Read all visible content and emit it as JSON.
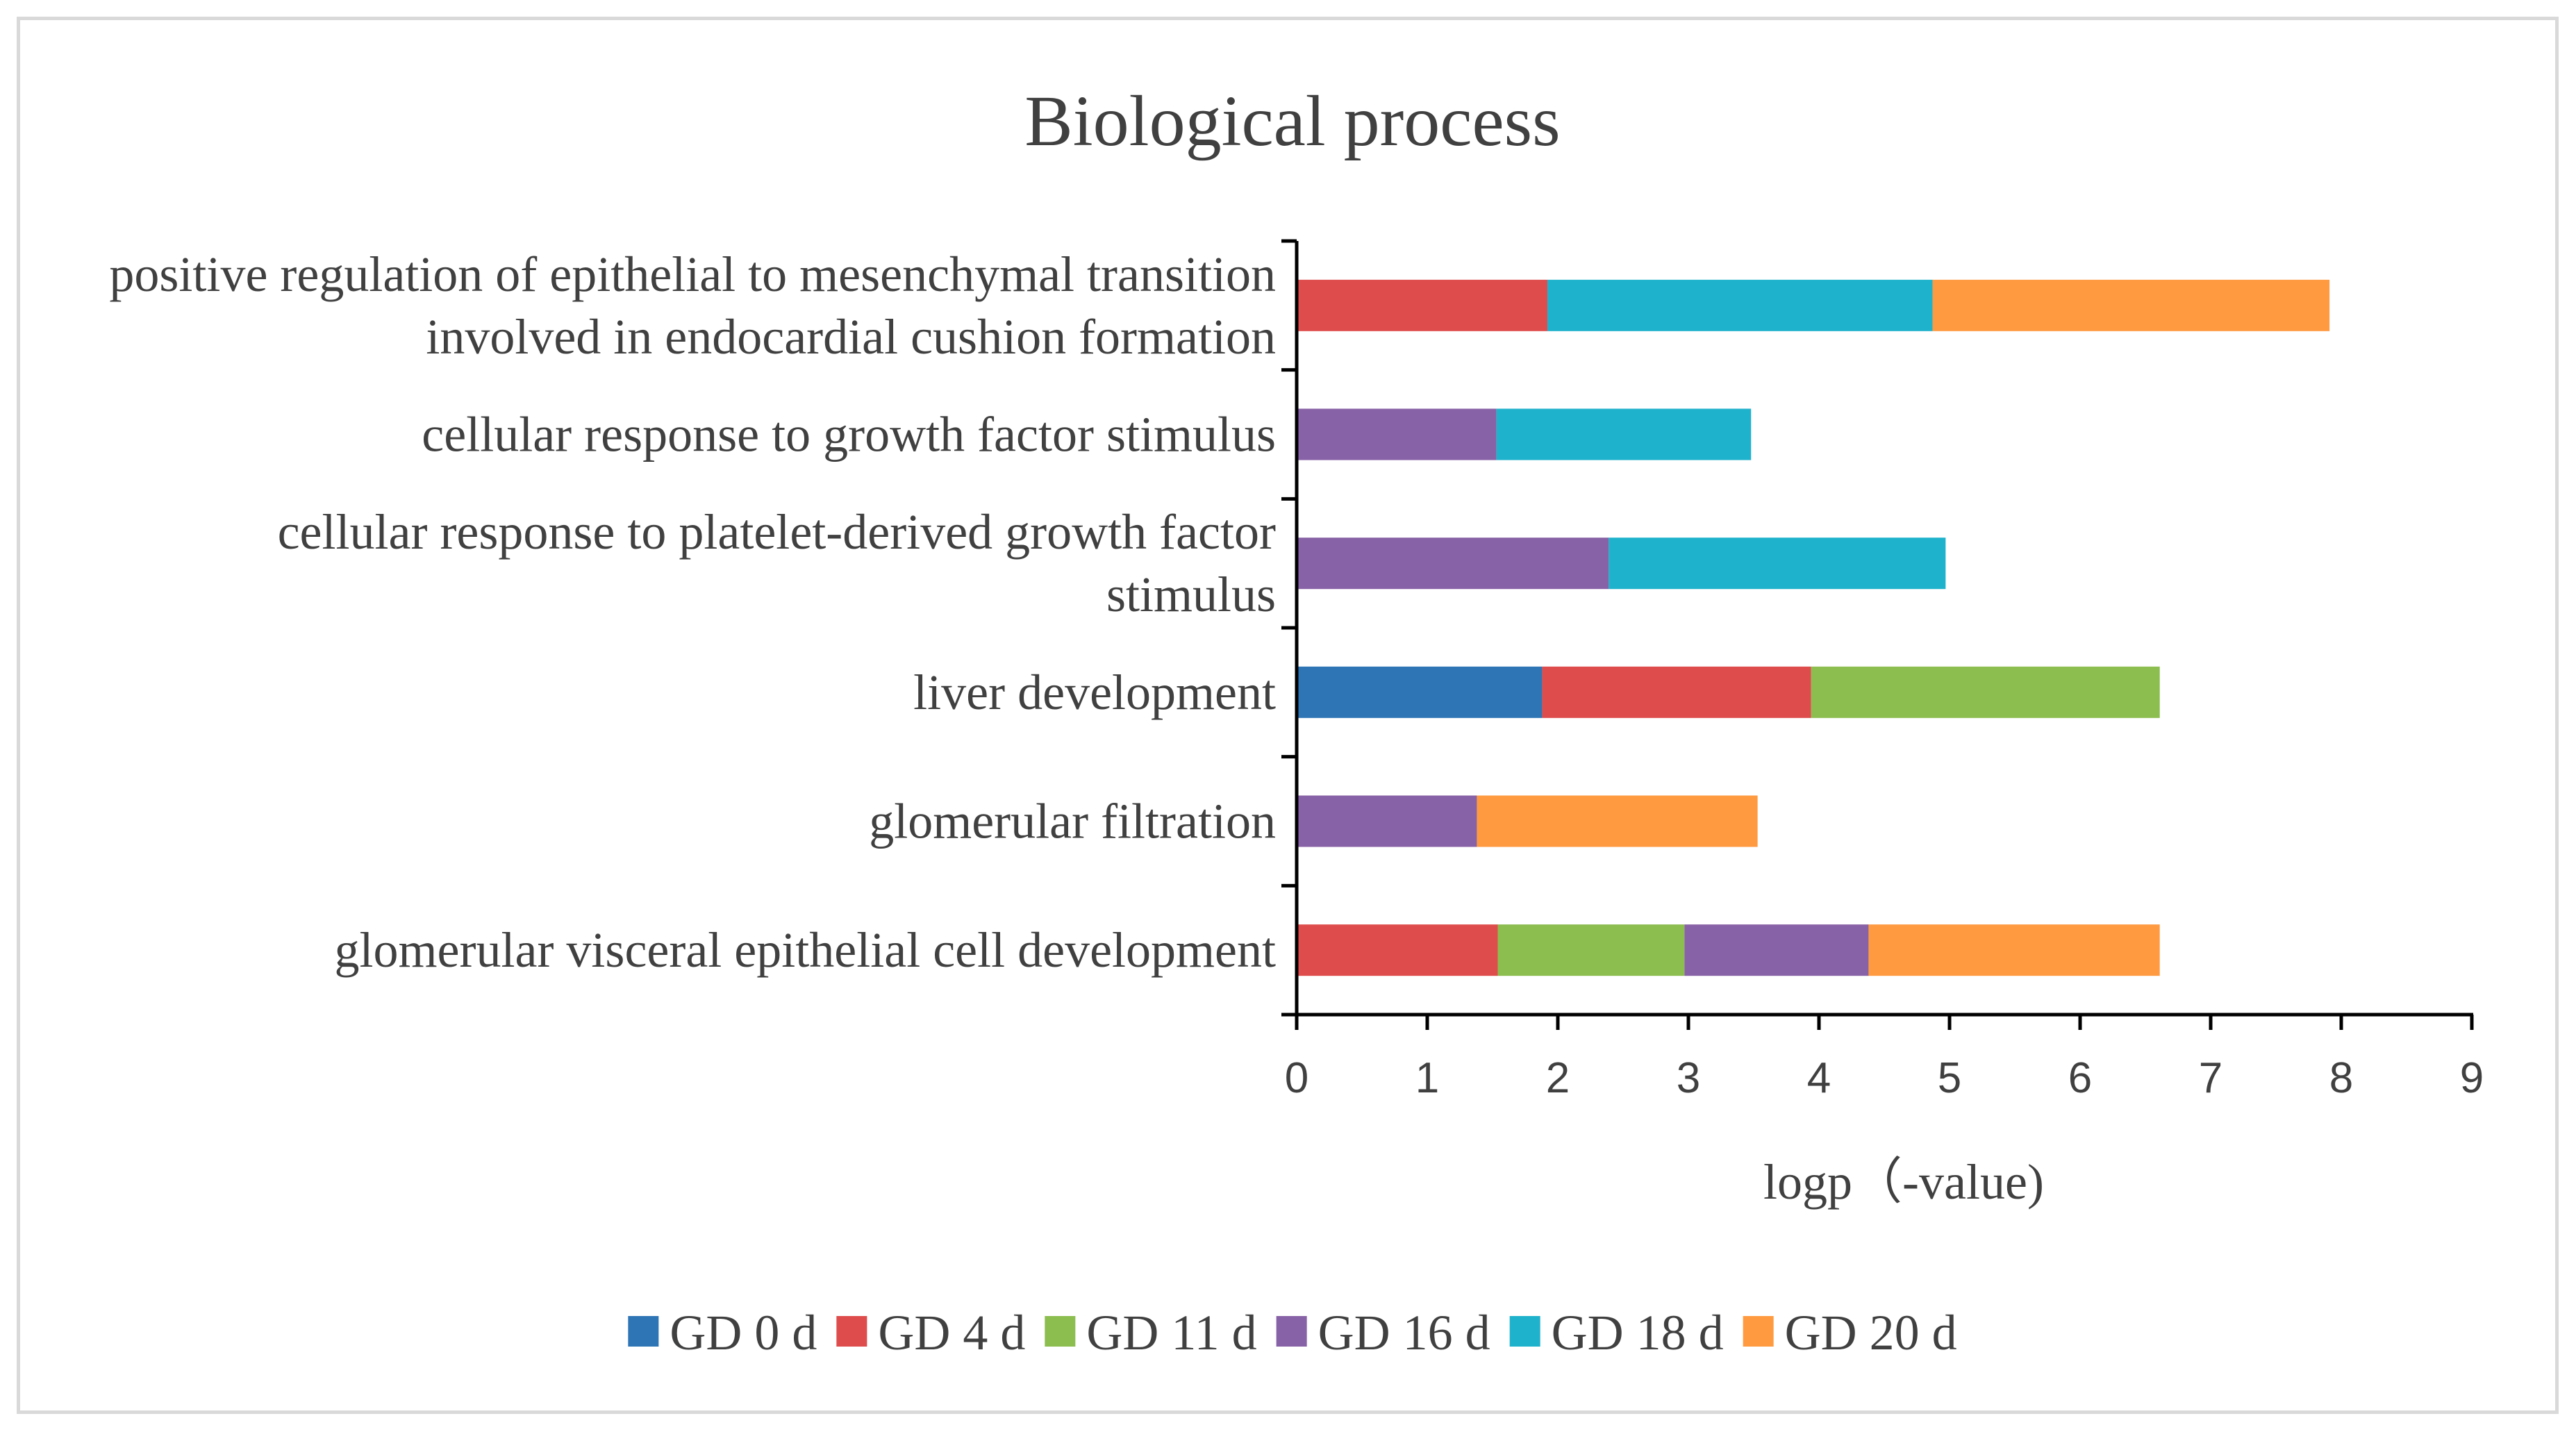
{
  "chart_data": {
    "type": "bar",
    "orientation": "horizontal",
    "stacked": true,
    "title": "Biological process",
    "xlabel": "logp（-value)",
    "ylabel": "",
    "xlim": [
      0,
      9
    ],
    "xticks": [
      "0",
      "1",
      "2",
      "3",
      "4",
      "5",
      "6",
      "7",
      "8",
      "9"
    ],
    "grid": false,
    "legend_position": "bottom",
    "categories": [
      [
        "positive regulation of epithelial to mesenchymal transition",
        "involved in endocardial cushion formation"
      ],
      [
        "cellular response to growth factor stimulus"
      ],
      [
        "cellular response to platelet-derived growth factor",
        "stimulus"
      ],
      [
        "liver development"
      ],
      [
        "glomerular filtration"
      ],
      [
        "glomerular visceral epithelial cell development"
      ]
    ],
    "series": [
      {
        "name": "GD 0 d",
        "color": "#2e75b6",
        "values": [
          0,
          0,
          0,
          1.88,
          0,
          0
        ]
      },
      {
        "name": "GD 4 d",
        "color": "#de4c4c",
        "values": [
          1.92,
          0,
          0,
          2.06,
          0,
          1.54
        ]
      },
      {
        "name": "GD 11 d",
        "color": "#8cbd4f",
        "values": [
          0,
          0,
          0,
          2.67,
          0,
          1.43
        ]
      },
      {
        "name": "GD 16 d",
        "color": "#8862a6",
        "values": [
          0,
          1.53,
          2.39,
          0,
          1.38,
          1.41
        ]
      },
      {
        "name": "GD 18 d",
        "color": "#1fb2cc",
        "values": [
          2.95,
          1.95,
          2.58,
          0,
          0,
          0
        ]
      },
      {
        "name": "GD 20 d",
        "color": "#ff9a40",
        "values": [
          3.04,
          0,
          0,
          0,
          2.15,
          2.23
        ]
      }
    ]
  }
}
